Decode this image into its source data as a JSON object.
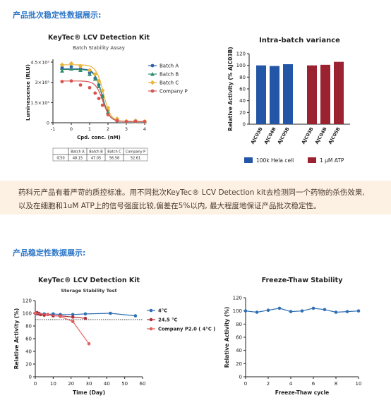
{
  "sections": {
    "batch_title": "产品批次稳定性数据展示:",
    "stability_title": "产品稳定性数据展示:"
  },
  "note": {
    "line1": "药科元产品有着严苛的质控标准。用不同批次KeyTec® LCV Detection kit去检测同一个药物的杀伤效果,",
    "line2": "以及在细胞和1uM ATP上的信号强度比较,偏差在5%以内, 最大程度地保证产品批次稳定性。"
  },
  "ic50_table": {
    "headers": [
      "",
      "Batch A",
      "Batch B",
      "Batch C",
      "Company P"
    ],
    "row": [
      "IC50",
      "48.15",
      "47.05",
      "56.58",
      "52.61"
    ]
  },
  "chart_data": [
    {
      "type": "line",
      "title": "KeyTec® LCV Detection Kit",
      "subtitle": "Batch Stability Assay",
      "xlabel": "Cpd. conc. (nM)",
      "ylabel": "Luminescence (RLU)",
      "xlim": [
        -1,
        4
      ],
      "ylim": [
        0,
        4.5
      ],
      "x_ticks": [
        -1,
        0,
        1,
        2,
        3,
        4
      ],
      "y_ticks": [
        {
          "v": 0,
          "label": "0"
        },
        {
          "v": 1.5,
          "label": "1.5×10⁵"
        },
        {
          "v": 3,
          "label": "3×10⁵"
        },
        {
          "v": 4.5,
          "label": "4.5×10⁵"
        }
      ],
      "legend_position": "right",
      "series": [
        {
          "name": "Batch A",
          "color": "#2f5fa8",
          "marker": "circle",
          "top": 4.0,
          "ic50_log": 1.68,
          "x": [
            -0.5,
            0,
            0.5,
            1,
            1.3,
            1.5,
            1.7,
            2,
            2.5,
            3,
            3.5,
            4
          ],
          "y": [
            4.1,
            4.15,
            4.0,
            3.7,
            3.3,
            2.8,
            2.0,
            0.9,
            0.25,
            0.1,
            0.15,
            0.1
          ]
        },
        {
          "name": "Batch B",
          "color": "#2e8b6e",
          "marker": "triangle",
          "top": 3.95,
          "ic50_log": 1.67,
          "x": [
            -0.5,
            0,
            0.5,
            1,
            1.3,
            1.5,
            1.7,
            2,
            2.5,
            3,
            3.5,
            4
          ],
          "y": [
            3.85,
            4.0,
            3.9,
            3.6,
            3.25,
            2.7,
            1.95,
            0.8,
            0.2,
            0.1,
            0.12,
            0.1
          ]
        },
        {
          "name": "Batch C",
          "color": "#e8b43a",
          "marker": "diamond",
          "top": 4.3,
          "ic50_log": 1.75,
          "x": [
            -0.5,
            0,
            0.5,
            1,
            1.3,
            1.5,
            1.7,
            2,
            2.5,
            3,
            3.5,
            4
          ],
          "y": [
            4.3,
            4.4,
            4.2,
            3.9,
            3.6,
            3.1,
            2.4,
            1.1,
            0.3,
            0.12,
            0.15,
            0.1
          ]
        },
        {
          "name": "Company P",
          "color": "#d9534f",
          "marker": "circle",
          "top": 3.1,
          "ic50_log": 1.72,
          "x": [
            -0.5,
            0,
            0.5,
            1,
            1.3,
            1.5,
            1.7,
            2,
            2.5,
            3,
            3.5,
            4
          ],
          "y": [
            3.05,
            3.1,
            2.8,
            2.6,
            2.2,
            1.8,
            1.3,
            0.6,
            0.15,
            0.08,
            0.1,
            0.08
          ]
        }
      ]
    },
    {
      "type": "bar",
      "title": "Intra-batch variance",
      "ylabel": "Relative Activity (% AJC03B)",
      "ylim": [
        0,
        120
      ],
      "y_ticks": [
        0,
        20,
        40,
        60,
        80,
        100,
        120
      ],
      "categories": [
        "AJC03B",
        "AJC04B",
        "AJC05B",
        "AJC03B",
        "AJC04B",
        "AJC05B"
      ],
      "values": [
        100,
        99,
        102,
        100,
        101,
        106
      ],
      "groups": [
        {
          "name": "100k Hela cell",
          "color": "#2356a6",
          "indices": [
            0,
            1,
            2
          ]
        },
        {
          "name": "1 μM ATP",
          "color": "#9b2230",
          "indices": [
            3,
            4,
            5
          ]
        }
      ],
      "legend_position": "bottom"
    },
    {
      "type": "line",
      "title": "KeyTec® LCV Detection Kit",
      "subtitle": "Storage Stability Test",
      "xlabel": "Time (Day)",
      "ylabel": "Relative Activity (%)",
      "xlim": [
        0,
        60
      ],
      "ylim": [
        0,
        120
      ],
      "x_ticks": [
        0,
        10,
        20,
        30,
        40,
        50,
        60
      ],
      "y_ticks": [
        0,
        20,
        40,
        60,
        80,
        100,
        120
      ],
      "reference_line": 90,
      "legend_position": "right",
      "series": [
        {
          "name": "4°C",
          "color": "#2f6fb3",
          "x": [
            0,
            1,
            2,
            3,
            5,
            7,
            10,
            14,
            21,
            28,
            42,
            56
          ],
          "y": [
            100,
            99,
            100,
            98,
            99,
            98,
            99,
            98,
            98,
            99,
            100,
            96
          ]
        },
        {
          "name": "24.5 °C",
          "color": "#b0303a",
          "x": [
            0,
            1,
            2,
            3,
            5,
            7,
            10,
            14,
            21,
            28
          ],
          "y": [
            100,
            101,
            99,
            98,
            97,
            98,
            96,
            96,
            94,
            92
          ]
        },
        {
          "name": "Company P2.0 ( 4°C )",
          "color": "#e0605e",
          "x": [
            0,
            7,
            14,
            21,
            30
          ],
          "y": [
            100,
            98,
            95,
            87,
            52
          ]
        }
      ]
    },
    {
      "type": "line",
      "title": "Freeze-Thaw Stability",
      "xlabel": "Freeze-Thaw cycle",
      "ylabel": "Relative Activity (%)",
      "xlim": [
        0,
        10
      ],
      "ylim": [
        0,
        120
      ],
      "x_ticks": [
        0,
        2,
        4,
        6,
        8,
        10
      ],
      "y_ticks": [
        0,
        20,
        40,
        60,
        80,
        100,
        120
      ],
      "series": [
        {
          "color": "#2f6fb3",
          "x": [
            0,
            1,
            2,
            3,
            4,
            5,
            6,
            7,
            8,
            9,
            10
          ],
          "y": [
            100,
            98,
            101,
            104,
            99,
            100,
            104,
            102,
            98,
            99,
            100
          ]
        }
      ]
    }
  ]
}
